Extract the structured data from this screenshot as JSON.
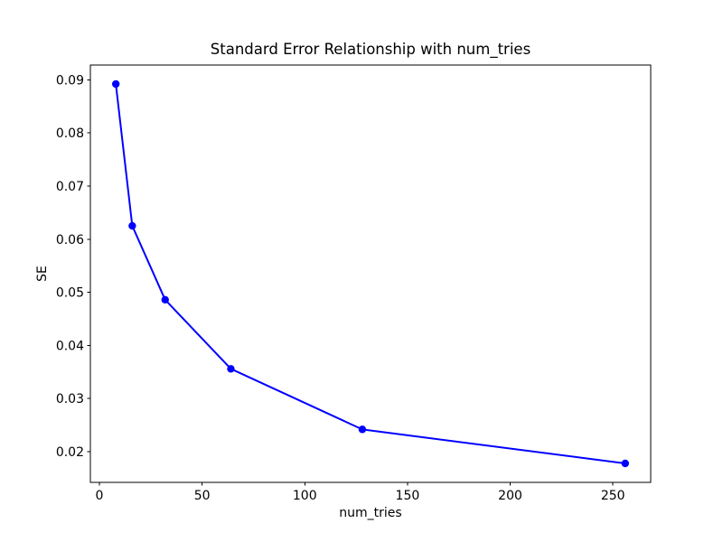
{
  "figure": {
    "background": "#ffffff",
    "text_color": "#000000",
    "spine_color": "#000000"
  },
  "chart_data": {
    "type": "line",
    "title": "Standard Error Relationship with num_tries",
    "xlabel": "num_tries",
    "ylabel": "SE",
    "x": [
      8,
      16,
      32,
      64,
      128,
      256
    ],
    "y": [
      0.0892,
      0.0625,
      0.0486,
      0.0356,
      0.0242,
      0.0178
    ],
    "series": [
      {
        "name": "SE",
        "x": [
          8,
          16,
          32,
          64,
          128,
          256
        ],
        "values": [
          0.0892,
          0.0625,
          0.0486,
          0.0356,
          0.0242,
          0.0178
        ]
      }
    ],
    "line_color": "#0000ff",
    "marker": "circle",
    "marker_color": "#0000ff",
    "line_width": 2,
    "marker_radius": 4.2,
    "xlim": [
      -4.4,
      268.4
    ],
    "ylim": [
      0.01423,
      0.09277
    ],
    "xticks": {
      "values": [
        0,
        50,
        100,
        150,
        200,
        250
      ],
      "labels": [
        "0",
        "50",
        "100",
        "150",
        "200",
        "250"
      ]
    },
    "yticks": {
      "values": [
        0.02,
        0.03,
        0.04,
        0.05,
        0.06,
        0.07,
        0.08,
        0.09
      ],
      "labels": [
        "0.02",
        "0.03",
        "0.04",
        "0.05",
        "0.06",
        "0.07",
        "0.08",
        "0.09"
      ]
    },
    "grid": false,
    "legend_position": "none"
  }
}
